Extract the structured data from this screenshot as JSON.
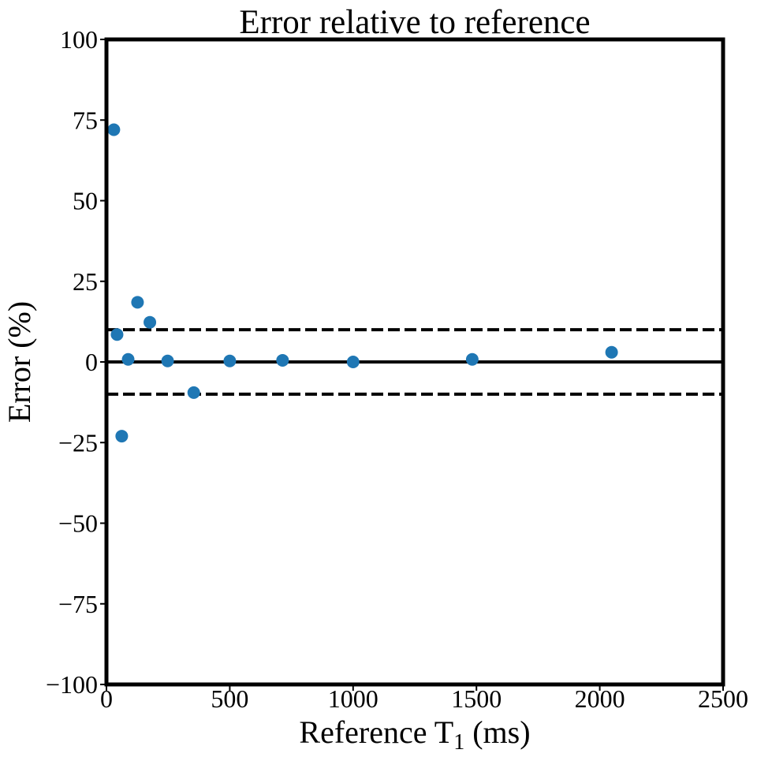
{
  "chart_data": {
    "type": "scatter",
    "title": "Error relative to reference",
    "xlabel": {
      "prefix": "Reference T",
      "subscript": "1",
      "suffix": " (ms)"
    },
    "ylabel": "Error (%)",
    "xlim": [
      0,
      2500
    ],
    "ylim": [
      -100,
      100
    ],
    "xticks": [
      0,
      500,
      1000,
      1500,
      2000,
      2500
    ],
    "xtick_labels": [
      "0",
      "500",
      "1000",
      "1500",
      "2000",
      "2500"
    ],
    "yticks": [
      -100,
      -75,
      -50,
      -25,
      0,
      25,
      50,
      75,
      100
    ],
    "ytick_labels": [
      "−100",
      "−75",
      "−50",
      "−25",
      "0",
      "25",
      "50",
      "75",
      "100"
    ],
    "grid": false,
    "reference_lines": [
      {
        "y": 0,
        "style": "solid"
      },
      {
        "y": 10,
        "style": "dashed"
      },
      {
        "y": -10,
        "style": "dashed"
      }
    ],
    "series": [
      {
        "color": "#1f77b4",
        "points": [
          {
            "x": 30,
            "y": 72
          },
          {
            "x": 43,
            "y": 8.5
          },
          {
            "x": 62,
            "y": -23
          },
          {
            "x": 88,
            "y": 0.8
          },
          {
            "x": 126,
            "y": 18.5
          },
          {
            "x": 176,
            "y": 12.3
          },
          {
            "x": 248,
            "y": 0.3
          },
          {
            "x": 354,
            "y": -9.5
          },
          {
            "x": 500,
            "y": 0.3
          },
          {
            "x": 714,
            "y": 0.5
          },
          {
            "x": 1000,
            "y": 0.0
          },
          {
            "x": 1483,
            "y": 0.8
          },
          {
            "x": 2048,
            "y": 3.0
          }
        ]
      }
    ]
  }
}
